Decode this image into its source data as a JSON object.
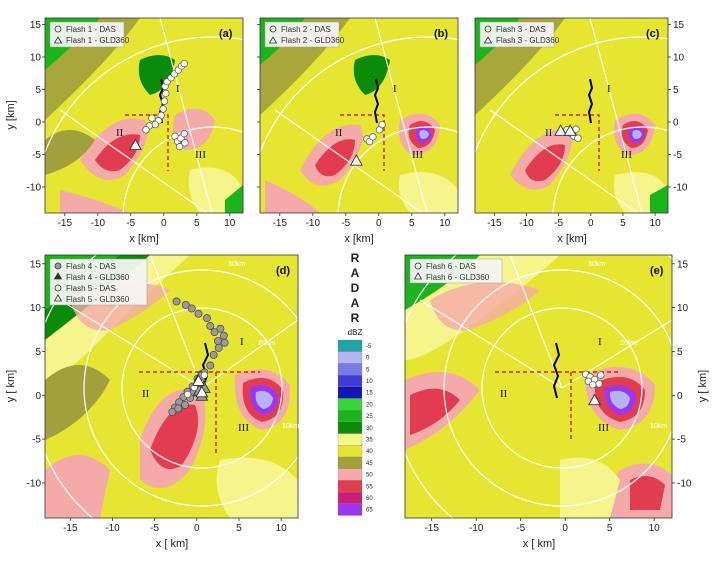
{
  "chart_data": [
    {
      "type": "scatter",
      "panel_label": "(a)",
      "xlabel": "x [km]",
      "ylabel": "y [km]",
      "xlim": [
        -18,
        12
      ],
      "ylim": [
        -14,
        16
      ],
      "x_ticks": [
        "-15",
        "-10",
        "-5",
        "0",
        "5",
        "10"
      ],
      "y_ticks": [
        "15",
        "10",
        "5",
        "0",
        "-5",
        "-10"
      ],
      "regions": [
        "I",
        "II",
        "III"
      ],
      "series": [
        {
          "name": "Flash 1 - DAS",
          "marker": "circle",
          "points": [
            [
              0.2,
              5.5
            ],
            [
              0.5,
              6.2
            ],
            [
              1.1,
              6.8
            ],
            [
              1.6,
              7.4
            ],
            [
              2.2,
              8
            ],
            [
              2.7,
              8.6
            ],
            [
              3.1,
              9
            ],
            [
              0.3,
              4.4
            ],
            [
              0.1,
              3.2
            ],
            [
              -0.1,
              2
            ],
            [
              -0.4,
              1
            ],
            [
              -0.8,
              0.2
            ],
            [
              -1.3,
              -0.4
            ],
            [
              -1.8,
              0.6
            ],
            [
              -2.2,
              -0.6
            ],
            [
              -2.7,
              -1.2
            ],
            [
              1.7,
              -2.2
            ],
            [
              2.1,
              -3
            ],
            [
              2.6,
              -2.5
            ],
            [
              3.1,
              -1.8
            ],
            [
              2.4,
              -3.8
            ],
            [
              3.2,
              -3.2
            ]
          ]
        },
        {
          "name": "Flash 1 - GLD360",
          "marker": "triangle",
          "points": [
            [
              -4.3,
              -3.6
            ]
          ]
        }
      ]
    },
    {
      "type": "scatter",
      "panel_label": "(b)",
      "xlabel": "x [km]",
      "ylabel": "",
      "xlim": [
        -18,
        12
      ],
      "ylim": [
        -14,
        16
      ],
      "x_ticks": [
        "-15",
        "-10",
        "-5",
        "0",
        "5",
        "10"
      ],
      "y_ticks": [
        "15",
        "10",
        "5",
        "0",
        "-5",
        "-10"
      ],
      "regions": [
        "I",
        "II",
        "III"
      ],
      "series": [
        {
          "name": "Flash 2 - DAS",
          "marker": "circle",
          "points": [
            [
              -1.8,
              -2.6
            ],
            [
              -1.4,
              -3
            ],
            [
              -0.9,
              -2.3
            ],
            [
              0.1,
              -1.2
            ],
            [
              0.5,
              -0.4
            ]
          ]
        },
        {
          "name": "Flash 2 - GLD360",
          "marker": "triangle",
          "points": [
            [
              -3.4,
              -6
            ]
          ]
        }
      ]
    },
    {
      "type": "scatter",
      "panel_label": "(c)",
      "xlabel": "x [km]",
      "ylabel": "",
      "xlim": [
        -18,
        12
      ],
      "ylim": [
        -14,
        16
      ],
      "x_ticks": [
        "-15",
        "-10",
        "-5",
        "0",
        "5",
        "10"
      ],
      "y_ticks": [
        "15",
        "10",
        "5",
        "0",
        "-5",
        "-10"
      ],
      "regions": [
        "I",
        "II",
        "III"
      ],
      "series": [
        {
          "name": "Flash 3 - DAS",
          "marker": "circle",
          "points": [
            [
              -3.2,
              -1.7
            ],
            [
              -2.6,
              -2.2
            ],
            [
              -2,
              -2.5
            ],
            [
              -2.3,
              -1.1
            ],
            [
              -3.7,
              -1.2
            ]
          ]
        },
        {
          "name": "Flash 3 - GLD360",
          "marker": "triangle",
          "points": [
            [
              -4.7,
              -1.4
            ],
            [
              -3.2,
              -1.4
            ]
          ]
        }
      ]
    },
    {
      "type": "scatter",
      "panel_label": "(d)",
      "xlabel": "x [ km]",
      "ylabel": "y [ km]",
      "xlim": [
        -18,
        12
      ],
      "ylim": [
        -14,
        16
      ],
      "x_ticks": [
        "-15",
        "-10",
        "-5",
        "0",
        "5",
        "10"
      ],
      "y_ticks": [
        "15",
        "10",
        "5",
        "0",
        "-5",
        "-10"
      ],
      "regions": [
        "I",
        "II",
        "III"
      ],
      "series": [
        {
          "name": "Flash 4 - DAS",
          "marker": "circle-filled",
          "points": [
            [
              -2.4,
              10.7
            ],
            [
              -1.3,
              10.3
            ],
            [
              -0.6,
              9.9
            ],
            [
              0.2,
              9.3
            ],
            [
              1.2,
              8.8
            ],
            [
              1.6,
              7.9
            ],
            [
              2.1,
              7.2
            ],
            [
              2.8,
              7.6
            ],
            [
              3.2,
              6.8
            ],
            [
              2.5,
              6.2
            ],
            [
              3.3,
              6
            ],
            [
              2.6,
              5.4
            ],
            [
              2,
              4.6
            ],
            [
              1.6,
              3.4
            ],
            [
              0.9,
              2.6
            ],
            [
              0.1,
              1.9
            ],
            [
              -0.5,
              1
            ],
            [
              -1.1,
              0.4
            ],
            [
              -1.6,
              -0.2
            ],
            [
              -2.1,
              -0.8
            ],
            [
              -2.6,
              -1.4
            ],
            [
              -2.9,
              -1.9
            ],
            [
              -1.4,
              -1.1
            ],
            [
              -0.4,
              0.3
            ],
            [
              0.6,
              0.7
            ],
            [
              -2.2,
              -1.5
            ],
            [
              -0.8,
              -0.3
            ]
          ]
        },
        {
          "name": "Flash 4 - GLD360",
          "marker": "triangle-filled",
          "points": [
            [
              0.3,
              0.5
            ],
            [
              0.6,
              -0.1
            ],
            [
              0.9,
              0.8
            ],
            [
              0.4,
              2.1
            ]
          ]
        },
        {
          "name": "Flash 5 - DAS",
          "marker": "circle",
          "points": [
            [
              -0.3,
              0.9
            ],
            [
              0.4,
              1.5
            ],
            [
              -1.1,
              0.1
            ],
            [
              0.9,
              2.3
            ]
          ]
        },
        {
          "name": "Flash 5 - GLD360",
          "marker": "triangle",
          "points": [
            [
              0.2,
              1.6
            ],
            [
              0.6,
              0.3
            ]
          ]
        }
      ],
      "ring_labels": [
        "30km",
        "20km",
        "10km"
      ]
    },
    {
      "type": "scatter",
      "panel_label": "(e)",
      "xlabel": "x [ km]",
      "ylabel": "y [ km]",
      "xlim": [
        -18,
        12
      ],
      "ylim": [
        -14,
        16
      ],
      "x_ticks": [
        "-15",
        "-10",
        "-5",
        "0",
        "5",
        "10"
      ],
      "y_ticks": [
        "15",
        "10",
        "5",
        "0",
        "-5",
        "-10"
      ],
      "regions": [
        "I",
        "II",
        "III"
      ],
      "series": [
        {
          "name": "Flash 6 - DAS",
          "marker": "circle",
          "points": [
            [
              2.3,
              2.4
            ],
            [
              2.8,
              2.1
            ],
            [
              3.3,
              1.8
            ],
            [
              3.8,
              1.3
            ],
            [
              2.6,
              1.6
            ],
            [
              3.1,
              1.2
            ],
            [
              4,
              2.3
            ]
          ]
        },
        {
          "name": "Flash 6 - GLD360",
          "marker": "triangle",
          "points": [
            [
              3.3,
              -0.6
            ]
          ]
        }
      ],
      "ring_labels": [
        "30km",
        "20km",
        "10km"
      ]
    }
  ],
  "colorbar": {
    "title": "dBZ",
    "side_label": [
      "R",
      "A",
      "D",
      "A",
      "R"
    ],
    "levels": [
      "-5",
      "0",
      "5",
      "10",
      "15",
      "20",
      "25",
      "30",
      "35",
      "40",
      "45",
      "50",
      "55",
      "60",
      "65"
    ],
    "colors": [
      "#1ea6a6",
      "#b4b4f5",
      "#7a7ae6",
      "#3c3cd2",
      "#1414b4",
      "#36d636",
      "#1cb41c",
      "#0a8c0a",
      "#f5f58c",
      "#e6e632",
      "#a0a03c",
      "#f5aaaa",
      "#e13c50",
      "#c81e78",
      "#9b37f0"
    ]
  },
  "colors": {
    "background": "#e6e632",
    "tower_track": "#000000",
    "marker_fill": "#ffffff",
    "das_filled": "#9a9a9a",
    "dashed_box": "#cc0000",
    "ring_lines": "#ffffff"
  }
}
